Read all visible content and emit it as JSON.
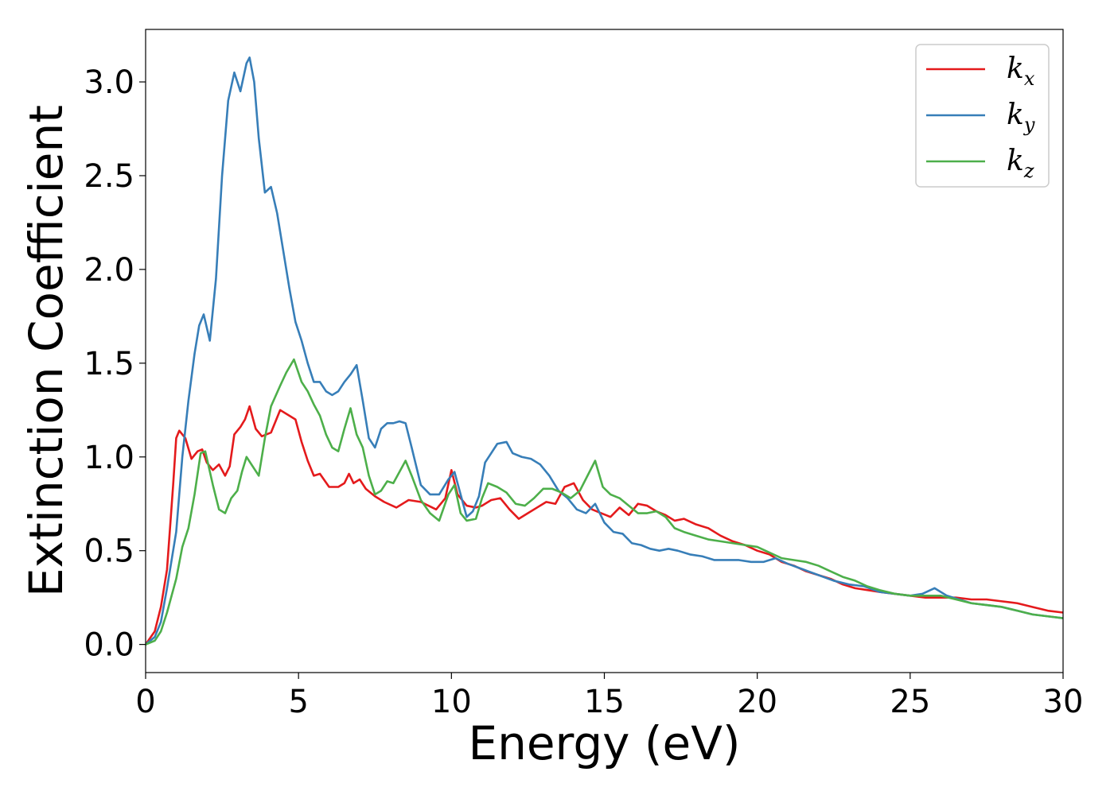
{
  "chart_data": {
    "type": "line",
    "title": "",
    "xlabel": "Energy (eV)",
    "ylabel": "Extinction Coefficient",
    "xlim": [
      0,
      30
    ],
    "ylim": [
      -0.15,
      3.28
    ],
    "xticks": [
      0,
      5,
      10,
      15,
      20,
      25,
      30
    ],
    "xtick_labels": [
      "0",
      "5",
      "10",
      "15",
      "20",
      "25",
      "30"
    ],
    "yticks": [
      0.0,
      0.5,
      1.0,
      1.5,
      2.0,
      2.5,
      3.0
    ],
    "ytick_labels": [
      "0.0",
      "0.5",
      "1.0",
      "1.5",
      "2.0",
      "2.5",
      "3.0"
    ],
    "grid": false,
    "legend_position": "top-right",
    "series": [
      {
        "name": "k",
        "subscript": "x",
        "color": "#e41a1c",
        "points": [
          [
            0,
            0
          ],
          [
            0.3,
            0.07
          ],
          [
            0.5,
            0.2
          ],
          [
            0.7,
            0.4
          ],
          [
            0.9,
            0.85
          ],
          [
            1.0,
            1.1
          ],
          [
            1.1,
            1.14
          ],
          [
            1.3,
            1.1
          ],
          [
            1.5,
            0.99
          ],
          [
            1.7,
            1.03
          ],
          [
            1.85,
            1.04
          ],
          [
            2.0,
            0.97
          ],
          [
            2.2,
            0.93
          ],
          [
            2.4,
            0.96
          ],
          [
            2.6,
            0.9
          ],
          [
            2.75,
            0.95
          ],
          [
            2.9,
            1.12
          ],
          [
            3.1,
            1.16
          ],
          [
            3.25,
            1.2
          ],
          [
            3.4,
            1.27
          ],
          [
            3.6,
            1.15
          ],
          [
            3.8,
            1.11
          ],
          [
            4.1,
            1.13
          ],
          [
            4.4,
            1.25
          ],
          [
            4.7,
            1.22
          ],
          [
            4.9,
            1.2
          ],
          [
            5.1,
            1.08
          ],
          [
            5.3,
            0.98
          ],
          [
            5.5,
            0.9
          ],
          [
            5.7,
            0.91
          ],
          [
            6.0,
            0.84
          ],
          [
            6.3,
            0.84
          ],
          [
            6.5,
            0.86
          ],
          [
            6.65,
            0.91
          ],
          [
            6.8,
            0.86
          ],
          [
            7.0,
            0.88
          ],
          [
            7.2,
            0.83
          ],
          [
            7.5,
            0.79
          ],
          [
            7.8,
            0.76
          ],
          [
            8.2,
            0.73
          ],
          [
            8.6,
            0.77
          ],
          [
            9.0,
            0.76
          ],
          [
            9.5,
            0.72
          ],
          [
            9.8,
            0.78
          ],
          [
            10.0,
            0.93
          ],
          [
            10.2,
            0.8
          ],
          [
            10.5,
            0.74
          ],
          [
            10.8,
            0.73
          ],
          [
            11.0,
            0.74
          ],
          [
            11.3,
            0.77
          ],
          [
            11.6,
            0.78
          ],
          [
            11.9,
            0.72
          ],
          [
            12.2,
            0.67
          ],
          [
            12.5,
            0.7
          ],
          [
            12.8,
            0.73
          ],
          [
            13.1,
            0.76
          ],
          [
            13.4,
            0.75
          ],
          [
            13.7,
            0.84
          ],
          [
            14.0,
            0.86
          ],
          [
            14.3,
            0.77
          ],
          [
            14.6,
            0.72
          ],
          [
            14.9,
            0.7
          ],
          [
            15.2,
            0.68
          ],
          [
            15.5,
            0.73
          ],
          [
            15.8,
            0.69
          ],
          [
            16.1,
            0.75
          ],
          [
            16.4,
            0.74
          ],
          [
            16.7,
            0.71
          ],
          [
            17.0,
            0.69
          ],
          [
            17.3,
            0.66
          ],
          [
            17.6,
            0.67
          ],
          [
            18.0,
            0.64
          ],
          [
            18.4,
            0.62
          ],
          [
            18.8,
            0.58
          ],
          [
            19.2,
            0.55
          ],
          [
            19.6,
            0.53
          ],
          [
            20.0,
            0.5
          ],
          [
            20.4,
            0.48
          ],
          [
            20.8,
            0.44
          ],
          [
            21.2,
            0.42
          ],
          [
            21.6,
            0.39
          ],
          [
            22.0,
            0.37
          ],
          [
            22.4,
            0.35
          ],
          [
            22.8,
            0.32
          ],
          [
            23.2,
            0.3
          ],
          [
            23.6,
            0.29
          ],
          [
            24.0,
            0.28
          ],
          [
            24.5,
            0.27
          ],
          [
            25.0,
            0.26
          ],
          [
            25.5,
            0.25
          ],
          [
            26.0,
            0.25
          ],
          [
            26.5,
            0.25
          ],
          [
            27.0,
            0.24
          ],
          [
            27.5,
            0.24
          ],
          [
            28.0,
            0.23
          ],
          [
            28.5,
            0.22
          ],
          [
            29.0,
            0.2
          ],
          [
            29.5,
            0.18
          ],
          [
            30.0,
            0.17
          ]
        ]
      },
      {
        "name": "k",
        "subscript": "y",
        "color": "#377eb8",
        "points": [
          [
            0,
            0
          ],
          [
            0.3,
            0.04
          ],
          [
            0.5,
            0.12
          ],
          [
            0.7,
            0.3
          ],
          [
            1.0,
            0.6
          ],
          [
            1.2,
            1.0
          ],
          [
            1.4,
            1.3
          ],
          [
            1.6,
            1.55
          ],
          [
            1.75,
            1.7
          ],
          [
            1.9,
            1.76
          ],
          [
            2.1,
            1.62
          ],
          [
            2.3,
            1.95
          ],
          [
            2.5,
            2.5
          ],
          [
            2.7,
            2.9
          ],
          [
            2.9,
            3.05
          ],
          [
            3.1,
            2.95
          ],
          [
            3.3,
            3.1
          ],
          [
            3.4,
            3.13
          ],
          [
            3.55,
            3.0
          ],
          [
            3.7,
            2.7
          ],
          [
            3.9,
            2.41
          ],
          [
            4.1,
            2.44
          ],
          [
            4.3,
            2.3
          ],
          [
            4.5,
            2.1
          ],
          [
            4.7,
            1.9
          ],
          [
            4.9,
            1.72
          ],
          [
            5.1,
            1.62
          ],
          [
            5.3,
            1.5
          ],
          [
            5.5,
            1.4
          ],
          [
            5.7,
            1.4
          ],
          [
            5.9,
            1.35
          ],
          [
            6.1,
            1.33
          ],
          [
            6.3,
            1.35
          ],
          [
            6.5,
            1.4
          ],
          [
            6.7,
            1.44
          ],
          [
            6.9,
            1.49
          ],
          [
            7.1,
            1.3
          ],
          [
            7.3,
            1.1
          ],
          [
            7.5,
            1.05
          ],
          [
            7.7,
            1.15
          ],
          [
            7.9,
            1.18
          ],
          [
            8.1,
            1.18
          ],
          [
            8.3,
            1.19
          ],
          [
            8.5,
            1.18
          ],
          [
            8.7,
            1.05
          ],
          [
            9.0,
            0.85
          ],
          [
            9.3,
            0.8
          ],
          [
            9.6,
            0.8
          ],
          [
            9.9,
            0.88
          ],
          [
            10.1,
            0.92
          ],
          [
            10.3,
            0.8
          ],
          [
            10.5,
            0.68
          ],
          [
            10.7,
            0.71
          ],
          [
            10.9,
            0.79
          ],
          [
            11.1,
            0.97
          ],
          [
            11.3,
            1.02
          ],
          [
            11.5,
            1.07
          ],
          [
            11.8,
            1.08
          ],
          [
            12.0,
            1.02
          ],
          [
            12.3,
            1.0
          ],
          [
            12.6,
            0.99
          ],
          [
            12.9,
            0.96
          ],
          [
            13.2,
            0.9
          ],
          [
            13.5,
            0.82
          ],
          [
            13.8,
            0.78
          ],
          [
            14.1,
            0.72
          ],
          [
            14.4,
            0.7
          ],
          [
            14.7,
            0.75
          ],
          [
            15.0,
            0.65
          ],
          [
            15.3,
            0.6
          ],
          [
            15.6,
            0.59
          ],
          [
            15.9,
            0.54
          ],
          [
            16.2,
            0.53
          ],
          [
            16.5,
            0.51
          ],
          [
            16.8,
            0.5
          ],
          [
            17.1,
            0.51
          ],
          [
            17.4,
            0.5
          ],
          [
            17.8,
            0.48
          ],
          [
            18.2,
            0.47
          ],
          [
            18.6,
            0.45
          ],
          [
            19.0,
            0.45
          ],
          [
            19.4,
            0.45
          ],
          [
            19.8,
            0.44
          ],
          [
            20.2,
            0.44
          ],
          [
            20.6,
            0.46
          ],
          [
            21.0,
            0.43
          ],
          [
            21.5,
            0.4
          ],
          [
            22.0,
            0.37
          ],
          [
            22.5,
            0.34
          ],
          [
            23.0,
            0.32
          ],
          [
            23.5,
            0.31
          ],
          [
            24.0,
            0.28
          ],
          [
            24.5,
            0.27
          ],
          [
            25.0,
            0.26
          ],
          [
            25.4,
            0.27
          ],
          [
            25.8,
            0.3
          ],
          [
            26.2,
            0.26
          ],
          [
            26.6,
            0.24
          ],
          [
            27.0,
            0.22
          ],
          [
            27.5,
            0.21
          ],
          [
            28.0,
            0.2
          ],
          [
            28.5,
            0.18
          ],
          [
            29.0,
            0.16
          ],
          [
            29.5,
            0.15
          ],
          [
            30.0,
            0.14
          ]
        ]
      },
      {
        "name": "k",
        "subscript": "z",
        "color": "#4daf4a",
        "points": [
          [
            0,
            0
          ],
          [
            0.3,
            0.02
          ],
          [
            0.5,
            0.07
          ],
          [
            0.7,
            0.17
          ],
          [
            1.0,
            0.35
          ],
          [
            1.2,
            0.52
          ],
          [
            1.4,
            0.62
          ],
          [
            1.6,
            0.8
          ],
          [
            1.8,
            1.02
          ],
          [
            1.95,
            1.03
          ],
          [
            2.2,
            0.85
          ],
          [
            2.4,
            0.72
          ],
          [
            2.6,
            0.7
          ],
          [
            2.8,
            0.78
          ],
          [
            3.0,
            0.82
          ],
          [
            3.15,
            0.92
          ],
          [
            3.3,
            1.0
          ],
          [
            3.5,
            0.95
          ],
          [
            3.7,
            0.9
          ],
          [
            3.9,
            1.1
          ],
          [
            4.1,
            1.27
          ],
          [
            4.4,
            1.38
          ],
          [
            4.6,
            1.45
          ],
          [
            4.85,
            1.52
          ],
          [
            5.1,
            1.4
          ],
          [
            5.3,
            1.35
          ],
          [
            5.5,
            1.28
          ],
          [
            5.7,
            1.22
          ],
          [
            5.9,
            1.12
          ],
          [
            6.1,
            1.05
          ],
          [
            6.3,
            1.03
          ],
          [
            6.5,
            1.15
          ],
          [
            6.7,
            1.26
          ],
          [
            6.9,
            1.12
          ],
          [
            7.1,
            1.05
          ],
          [
            7.3,
            0.9
          ],
          [
            7.5,
            0.8
          ],
          [
            7.7,
            0.82
          ],
          [
            7.9,
            0.87
          ],
          [
            8.1,
            0.86
          ],
          [
            8.3,
            0.92
          ],
          [
            8.5,
            0.98
          ],
          [
            8.7,
            0.9
          ],
          [
            9.0,
            0.77
          ],
          [
            9.3,
            0.7
          ],
          [
            9.6,
            0.66
          ],
          [
            9.9,
            0.8
          ],
          [
            10.1,
            0.85
          ],
          [
            10.3,
            0.7
          ],
          [
            10.5,
            0.66
          ],
          [
            10.8,
            0.67
          ],
          [
            11.0,
            0.78
          ],
          [
            11.2,
            0.86
          ],
          [
            11.5,
            0.84
          ],
          [
            11.8,
            0.81
          ],
          [
            12.1,
            0.75
          ],
          [
            12.4,
            0.74
          ],
          [
            12.7,
            0.78
          ],
          [
            13.0,
            0.83
          ],
          [
            13.3,
            0.83
          ],
          [
            13.6,
            0.81
          ],
          [
            13.9,
            0.78
          ],
          [
            14.2,
            0.82
          ],
          [
            14.45,
            0.9
          ],
          [
            14.7,
            0.98
          ],
          [
            14.95,
            0.84
          ],
          [
            15.2,
            0.8
          ],
          [
            15.5,
            0.78
          ],
          [
            15.8,
            0.74
          ],
          [
            16.1,
            0.7
          ],
          [
            16.4,
            0.7
          ],
          [
            16.7,
            0.71
          ],
          [
            17.0,
            0.68
          ],
          [
            17.3,
            0.62
          ],
          [
            17.6,
            0.6
          ],
          [
            18.0,
            0.58
          ],
          [
            18.4,
            0.56
          ],
          [
            18.8,
            0.55
          ],
          [
            19.2,
            0.54
          ],
          [
            19.6,
            0.53
          ],
          [
            20.0,
            0.52
          ],
          [
            20.4,
            0.49
          ],
          [
            20.8,
            0.46
          ],
          [
            21.2,
            0.45
          ],
          [
            21.6,
            0.44
          ],
          [
            22.0,
            0.42
          ],
          [
            22.4,
            0.39
          ],
          [
            22.8,
            0.36
          ],
          [
            23.2,
            0.34
          ],
          [
            23.6,
            0.31
          ],
          [
            24.0,
            0.29
          ],
          [
            24.5,
            0.27
          ],
          [
            25.0,
            0.26
          ],
          [
            25.5,
            0.26
          ],
          [
            26.0,
            0.26
          ],
          [
            26.5,
            0.24
          ],
          [
            27.0,
            0.22
          ],
          [
            27.5,
            0.21
          ],
          [
            28.0,
            0.2
          ],
          [
            28.5,
            0.18
          ],
          [
            29.0,
            0.16
          ],
          [
            29.5,
            0.15
          ],
          [
            30.0,
            0.14
          ]
        ]
      }
    ]
  }
}
